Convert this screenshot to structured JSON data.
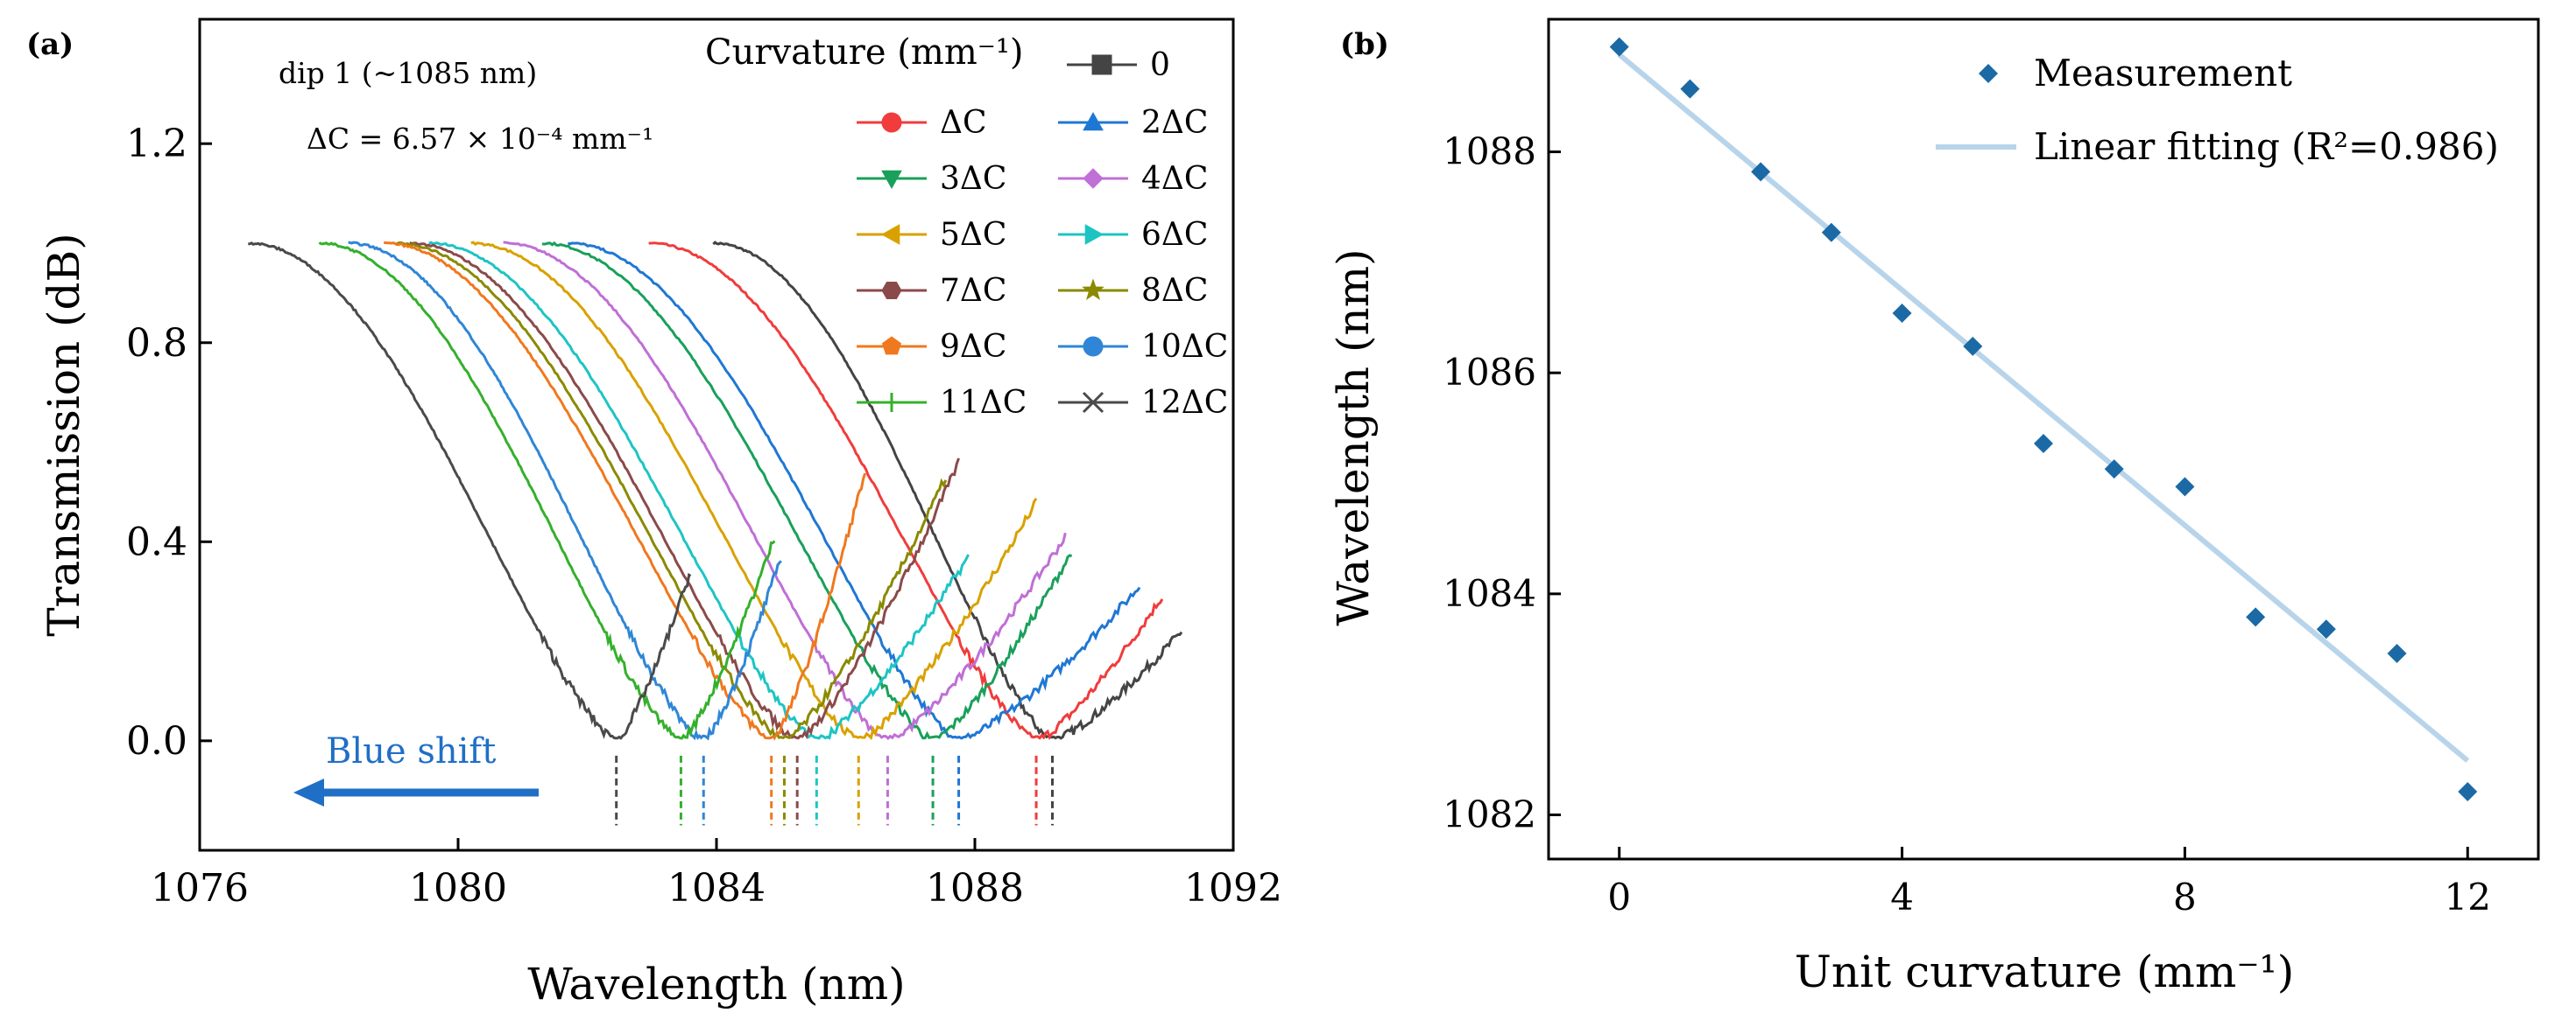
{
  "panel_a": {
    "label": "(a)",
    "annotation_dip": "dip 1 (~1085 nm)",
    "annotation_dc": "ΔC = 6.57 × 10⁻⁴ mm⁻¹",
    "arrow_label": "Blue shift",
    "arrow_color": "#1f6fc6",
    "legend_title": "Curvature (mm⁻¹)"
  },
  "panel_b": {
    "label": "(b)",
    "point_color": "#1b6aa5",
    "fit_color": "#b8d4ea"
  },
  "chart_data": [
    {
      "type": "line",
      "title": "",
      "xlabel": "Wavelength (nm)",
      "ylabel": "Transmission (dB)",
      "xlim": [
        1076,
        1092
      ],
      "ylim": [
        -0.22,
        1.45
      ],
      "xticks": [
        1076,
        1080,
        1084,
        1088,
        1092
      ],
      "xtick_labels": [
        "1076",
        "1080",
        "1084",
        "1088",
        "1092"
      ],
      "yticks": [
        0.0,
        0.4,
        0.8,
        1.2
      ],
      "ytick_labels": [
        "0.0",
        "0.4",
        "0.8",
        "1.2"
      ],
      "legend_position": "top-right",
      "series": [
        {
          "name": "0",
          "marker": "square",
          "color": "#444444",
          "start": 1083.95,
          "dip": 1089.2,
          "end": 1091.2,
          "end_y": 0.22
        },
        {
          "name": "ΔC",
          "marker": "circle",
          "color": "#f03c3c",
          "start": 1082.95,
          "dip": 1088.95,
          "end": 1090.9,
          "end_y": 0.29
        },
        {
          "name": "2ΔC",
          "marker": "triangle",
          "color": "#1f77d4",
          "start": 1081.7,
          "dip": 1087.75,
          "end": 1090.55,
          "end_y": 0.31
        },
        {
          "name": "3ΔC",
          "marker": "tri-down",
          "color": "#19a05a",
          "start": 1081.3,
          "dip": 1087.35,
          "end": 1089.5,
          "end_y": 0.38
        },
        {
          "name": "4ΔC",
          "marker": "diamond",
          "color": "#bf6fd6",
          "start": 1080.7,
          "dip": 1086.65,
          "end": 1089.4,
          "end_y": 0.41
        },
        {
          "name": "5ΔC",
          "marker": "tri-left",
          "color": "#d9a100",
          "start": 1080.2,
          "dip": 1086.2,
          "end": 1088.95,
          "end_y": 0.48
        },
        {
          "name": "6ΔC",
          "marker": "tri-right",
          "color": "#1ec4c4",
          "start": 1079.55,
          "dip": 1085.55,
          "end": 1087.9,
          "end_y": 0.37
        },
        {
          "name": "7ΔC",
          "marker": "hexagon",
          "color": "#8b4a4a",
          "start": 1079.25,
          "dip": 1085.25,
          "end": 1087.75,
          "end_y": 0.56
        },
        {
          "name": "8ΔC",
          "marker": "star",
          "color": "#8a8a00",
          "start": 1079.05,
          "dip": 1085.05,
          "end": 1087.55,
          "end_y": 0.53
        },
        {
          "name": "9ΔC",
          "marker": "pentagon",
          "color": "#f0781e",
          "start": 1078.85,
          "dip": 1084.85,
          "end": 1086.3,
          "end_y": 0.54
        },
        {
          "name": "10ΔC",
          "marker": "sphere",
          "color": "#2f86d6",
          "start": 1078.3,
          "dip": 1083.8,
          "end": 1085.0,
          "end_y": 0.37
        },
        {
          "name": "11ΔC",
          "marker": "plus",
          "color": "#34b02c",
          "start": 1077.85,
          "dip": 1083.45,
          "end": 1084.9,
          "end_y": 0.41
        },
        {
          "name": "12ΔC",
          "marker": "cross",
          "color": "#4a4a4a",
          "start": 1076.75,
          "dip": 1082.45,
          "end": 1083.6,
          "end_y": 0.34
        }
      ]
    },
    {
      "type": "scatter",
      "title": "",
      "xlabel": "Unit curvature (mm⁻¹)",
      "ylabel": "Wavelength (nm)",
      "xlim": [
        -1,
        13
      ],
      "ylim": [
        1081.6,
        1089.2
      ],
      "xticks": [
        0,
        4,
        8,
        12
      ],
      "xtick_labels": [
        "0",
        "4",
        "8",
        "12"
      ],
      "yticks": [
        1082,
        1084,
        1086,
        1088
      ],
      "ytick_labels": [
        "1082",
        "1084",
        "1086",
        "1088"
      ],
      "legend_position": "top-right",
      "series": [
        {
          "name": "Measurement",
          "x": [
            0,
            1,
            2,
            3,
            4,
            5,
            6,
            7,
            8,
            9,
            10,
            11,
            12
          ],
          "y": [
            1088.95,
            1088.57,
            1087.82,
            1087.27,
            1086.54,
            1086.24,
            1085.36,
            1085.13,
            1084.97,
            1083.79,
            1083.68,
            1083.46,
            1082.21
          ]
        },
        {
          "name": "Linear fitting (R²=0.986)",
          "fit": "linear",
          "x": [
            0,
            12
          ],
          "y": [
            1088.88,
            1082.49
          ]
        }
      ]
    }
  ]
}
